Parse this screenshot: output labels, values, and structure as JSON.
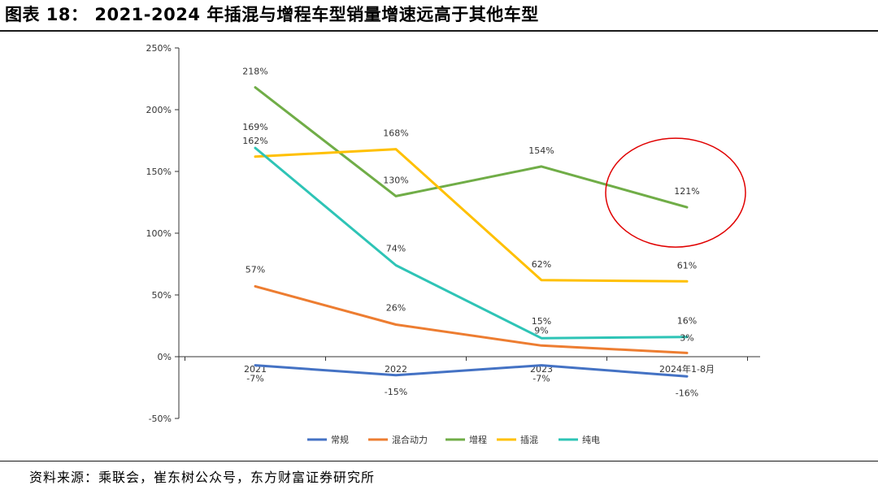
{
  "title": "图表 18： 2021-2024 年插混与增程车型销量增速远高于其他车型",
  "source": "资料来源：乘联会，崔东树公众号，东方财富证券研究所",
  "chart_data": {
    "type": "line",
    "title": "",
    "xlabel": "",
    "ylabel": "",
    "categories": [
      "2021",
      "2022",
      "2023",
      "2024年1-8月"
    ],
    "ylim": [
      -50,
      250
    ],
    "yticks": [
      -50,
      0,
      50,
      100,
      150,
      200,
      250
    ],
    "ytick_labels": [
      "-50%",
      "0%",
      "50%",
      "100%",
      "150%",
      "200%",
      "250%"
    ],
    "legend_position": "bottom",
    "grid": false,
    "series": [
      {
        "name": "常规",
        "color": "#4472c4",
        "values": [
          -7,
          -15,
          -7,
          -16
        ],
        "labels": [
          "-7%",
          "-15%",
          "-7%",
          "-16%"
        ]
      },
      {
        "name": "混合动力",
        "color": "#ed7d31",
        "values": [
          57,
          26,
          9,
          3
        ],
        "labels": [
          "57%",
          "26%",
          "9%",
          "3%"
        ]
      },
      {
        "name": "增程",
        "color": "#70ad47",
        "values": [
          218,
          130,
          154,
          121
        ],
        "labels": [
          "218%",
          "130%",
          "154%",
          "121%"
        ]
      },
      {
        "name": "插混",
        "color": "#ffc000",
        "values": [
          162,
          168,
          62,
          61
        ],
        "labels": [
          "162%",
          "168%",
          "62%",
          "61%"
        ]
      },
      {
        "name": "纯电",
        "color": "#2ec4b6",
        "values": [
          169,
          74,
          15,
          16
        ],
        "labels": [
          "169%",
          "74%",
          "15%",
          "16%"
        ]
      }
    ],
    "annotation": {
      "shape": "ellipse",
      "color": "#e00000",
      "target_series": "增程",
      "target_category": "2024年1-8月"
    }
  }
}
